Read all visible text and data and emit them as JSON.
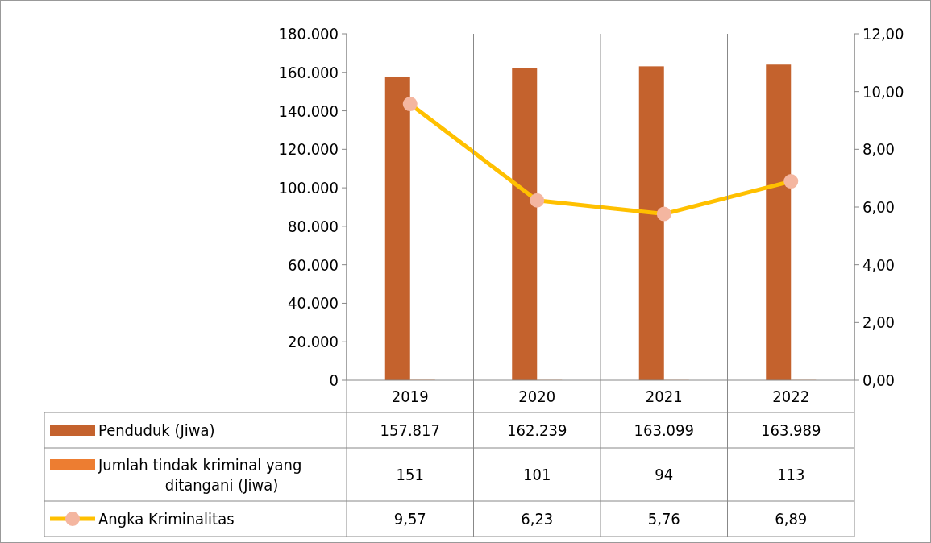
{
  "chart_data": {
    "type": "bar",
    "categories": [
      "2019",
      "2020",
      "2021",
      "2022"
    ],
    "series": [
      {
        "name": "Penduduk (Jiwa)",
        "color": "#c4622d",
        "values": [
          157817,
          162239,
          163099,
          163989
        ],
        "value_labels": [
          "157.817",
          "162.239",
          "163.099",
          "163.989"
        ]
      },
      {
        "name": "Jumlah tindak kriminal yang ditangani (Jiwa)",
        "color": "#ed7d31",
        "values": [
          151,
          101,
          94,
          113
        ],
        "value_labels": [
          "151",
          "101",
          "94",
          "113"
        ]
      },
      {
        "name": "Angka Kriminalitas",
        "type": "line",
        "axis": "y2",
        "color": "#ffc000",
        "marker": "circle",
        "values": [
          9.57,
          6.23,
          5.76,
          6.89
        ],
        "value_labels": [
          "9,57",
          "6,23",
          "5,76",
          "6,89"
        ]
      }
    ],
    "ylim": [
      0,
      180000
    ],
    "yticks": [
      {
        "value": 0,
        "label": "0"
      },
      {
        "value": 20000,
        "label": "20.000"
      },
      {
        "value": 40000,
        "label": "40.000"
      },
      {
        "value": 60000,
        "label": "60.000"
      },
      {
        "value": 80000,
        "label": "80.000"
      },
      {
        "value": 100000,
        "label": "100.000"
      },
      {
        "value": 120000,
        "label": "120.000"
      },
      {
        "value": 140000,
        "label": "140.000"
      },
      {
        "value": 160000,
        "label": "160.000"
      },
      {
        "value": 180000,
        "label": "180.000"
      }
    ],
    "y2lim": [
      0,
      12
    ],
    "y2ticks": [
      {
        "value": 0,
        "label": "0,00"
      },
      {
        "value": 2,
        "label": "2,00"
      },
      {
        "value": 4,
        "label": "4,00"
      },
      {
        "value": 6,
        "label": "6,00"
      },
      {
        "value": 8,
        "label": "8,00"
      },
      {
        "value": 10,
        "label": "10,00"
      },
      {
        "value": 12,
        "label": "12,00"
      }
    ],
    "grid": false,
    "legend": "bottom"
  }
}
